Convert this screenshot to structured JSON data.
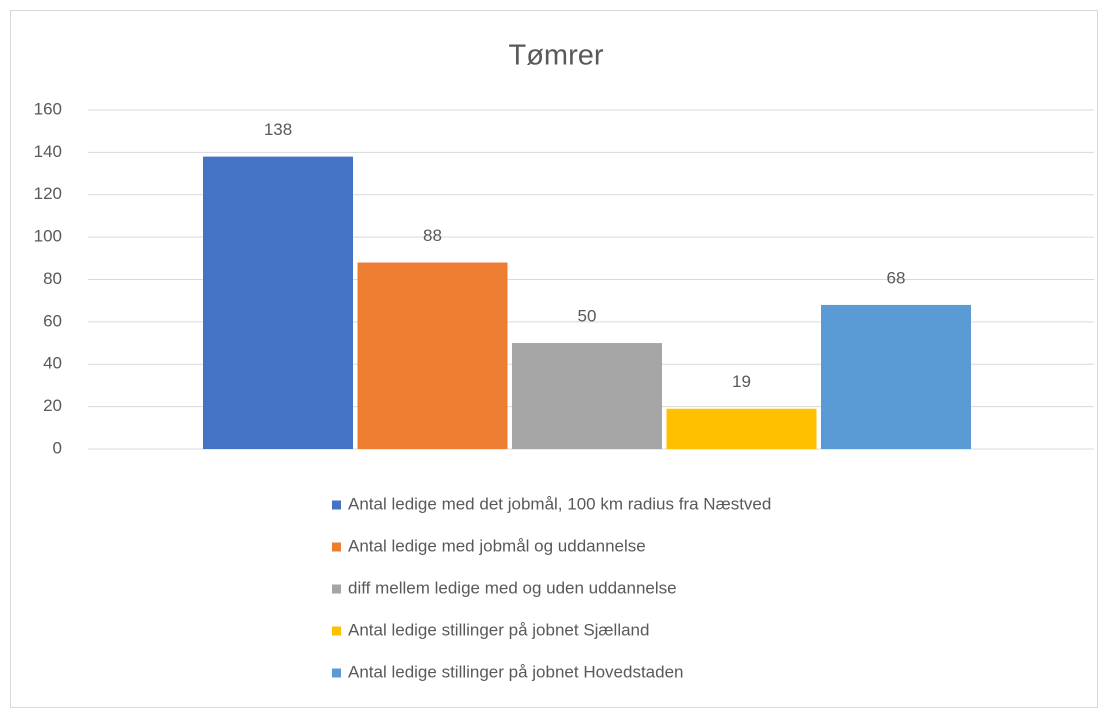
{
  "chart_data": {
    "type": "bar",
    "title": "Tømrer",
    "categories": [
      null
    ],
    "series": [
      {
        "name": "Antal ledige med det jobmål, 100 km radius fra Næstved",
        "color": "#4472c4",
        "values": [
          138
        ]
      },
      {
        "name": "Antal ledige med jobmål og uddannelse",
        "color": "#ed7d31",
        "values": [
          88
        ]
      },
      {
        "name": "diff mellem ledige med og uden uddannelse",
        "color": "#a5a5a5",
        "values": [
          50
        ]
      },
      {
        "name": "Antal ledige stillinger på jobnet Sjælland",
        "color": "#ffc000",
        "values": [
          19
        ]
      },
      {
        "name": "Antal ledige stillinger på jobnet Hovedstaden",
        "color": "#5b9bd5",
        "values": [
          68
        ]
      }
    ],
    "ylim": [
      0,
      160
    ],
    "yticks": [
      0,
      20,
      40,
      60,
      80,
      100,
      120,
      140,
      160
    ],
    "grid": true,
    "legend": "bottom"
  }
}
